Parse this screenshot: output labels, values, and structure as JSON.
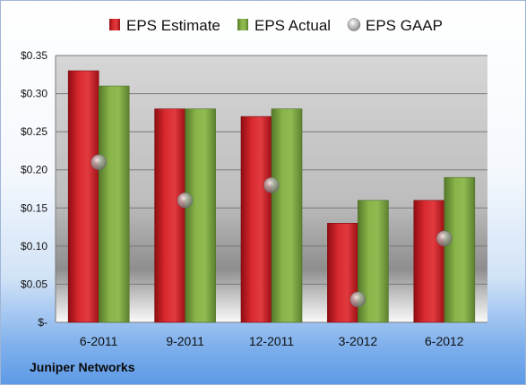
{
  "chart_data": {
    "type": "bar",
    "categories": [
      "6-2011",
      "9-2011",
      "12-2011",
      "3-2012",
      "6-2012"
    ],
    "series": [
      {
        "name": "EPS Estimate",
        "kind": "bar",
        "color": "#c8161d",
        "values": [
          0.33,
          0.28,
          0.27,
          0.13,
          0.16
        ]
      },
      {
        "name": "EPS Actual",
        "kind": "bar",
        "color": "#77a33b",
        "values": [
          0.31,
          0.28,
          0.28,
          0.16,
          0.19
        ]
      },
      {
        "name": "EPS GAAP",
        "kind": "marker",
        "color": "#a9a9a9",
        "values": [
          0.21,
          0.16,
          0.18,
          0.03,
          0.11
        ]
      }
    ],
    "yticks": [
      "$-",
      "$0.05",
      "$0.10",
      "$0.15",
      "$0.20",
      "$0.25",
      "$0.30",
      "$0.35"
    ],
    "ylim": [
      0,
      0.35
    ],
    "grid": true,
    "legend_position": "top"
  },
  "footer": {
    "company": "Juniper Networks"
  }
}
